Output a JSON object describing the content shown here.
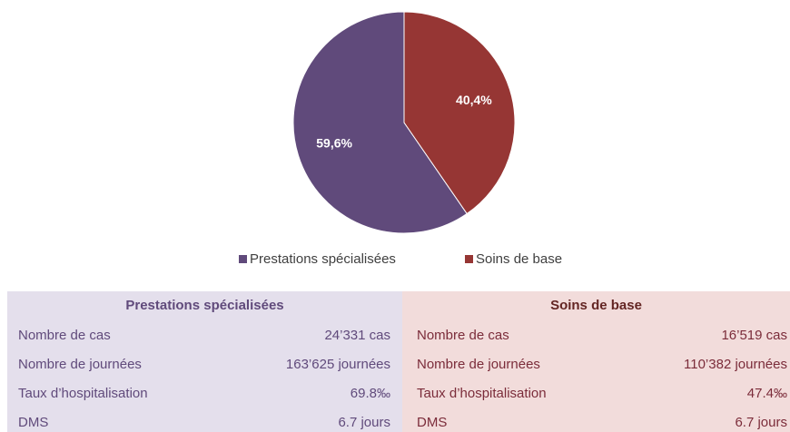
{
  "chart_data": {
    "type": "pie",
    "categories": [
      "Prestations spécialisées",
      "Soins de base"
    ],
    "values": [
      59.6,
      40.4
    ],
    "value_labels": [
      "59,6%",
      "40,4%"
    ],
    "colors": [
      "#604a7b",
      "#963634"
    ],
    "legend": "bottom"
  },
  "table": {
    "panels": [
      {
        "title": "Prestations spécialisées",
        "rows": [
          [
            "Nombre de cas",
            "24’331 cas"
          ],
          [
            "Nombre de journées",
            "163’625 journées"
          ],
          [
            "Taux d’hospitalisation",
            "69.8‰"
          ],
          [
            "DMS",
            "6.7 jours"
          ]
        ]
      },
      {
        "title": "Soins de base",
        "rows": [
          [
            "Nombre de cas",
            "16’519 cas"
          ],
          [
            "Nombre de journées",
            "110’382 journées"
          ],
          [
            "Taux d’hospitalisation",
            "47.4‰"
          ],
          [
            "DMS",
            "6.7 jours"
          ]
        ]
      }
    ]
  }
}
